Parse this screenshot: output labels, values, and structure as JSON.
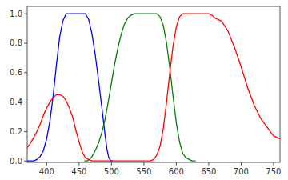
{
  "chart_data": {
    "type": "line",
    "xlim": [
      370,
      760
    ],
    "ylim": [
      -0.01,
      1.05
    ],
    "xticks": [
      400,
      450,
      500,
      550,
      600,
      650,
      700,
      750
    ],
    "yticks": [
      {
        "value": 0.0,
        "label": "0.0"
      },
      0.2,
      0.4,
      0.6,
      0.8,
      {
        "value": 1.0,
        "label": "1.0"
      }
    ],
    "grid": false,
    "series": [
      {
        "color": "blue",
        "x": [
          370,
          375,
          380,
          385,
          390,
          395,
          400,
          405,
          410,
          415,
          420,
          425,
          430,
          435,
          440,
          445,
          450,
          455,
          460,
          465,
          470,
          475,
          480,
          485,
          490,
          493,
          496,
          499,
          502
        ],
        "values": [
          0.0,
          0.0,
          0.0,
          0.01,
          0.03,
          0.07,
          0.15,
          0.27,
          0.44,
          0.65,
          0.84,
          0.95,
          1.0,
          1.0,
          1.0,
          1.0,
          1.0,
          1.0,
          1.0,
          0.96,
          0.86,
          0.72,
          0.55,
          0.37,
          0.18,
          0.08,
          0.02,
          0.0,
          0.0
        ]
      },
      {
        "color": "green",
        "x": [
          458,
          462,
          466,
          470,
          475,
          480,
          485,
          490,
          495,
          500,
          505,
          510,
          515,
          520,
          525,
          530,
          535,
          540,
          545,
          550,
          555,
          560,
          565,
          570,
          575,
          580,
          585,
          590,
          595,
          600,
          605,
          610,
          615,
          620,
          624,
          627,
          630
        ],
        "values": [
          0.0,
          0.0,
          0.01,
          0.03,
          0.07,
          0.12,
          0.19,
          0.28,
          0.4,
          0.53,
          0.66,
          0.77,
          0.86,
          0.93,
          0.97,
          0.99,
          1.0,
          1.0,
          1.0,
          1.0,
          1.0,
          1.0,
          1.0,
          1.0,
          0.98,
          0.92,
          0.8,
          0.63,
          0.44,
          0.26,
          0.13,
          0.05,
          0.02,
          0.01,
          0.0,
          0.0,
          0.0
        ]
      },
      {
        "color": "red",
        "x": [
          370,
          375,
          380,
          385,
          390,
          395,
          400,
          405,
          410,
          415,
          420,
          425,
          430,
          435,
          440,
          445,
          450,
          455,
          460,
          465,
          470,
          475,
          480,
          490,
          500,
          560,
          565,
          570,
          575,
          580,
          585,
          590,
          595,
          600,
          605,
          610,
          615,
          620,
          625,
          630,
          635,
          640,
          645,
          650,
          655,
          660,
          665,
          670,
          680,
          690,
          700,
          710,
          720,
          730,
          740,
          750,
          760
        ],
        "values": [
          0.09,
          0.12,
          0.16,
          0.2,
          0.25,
          0.31,
          0.36,
          0.4,
          0.43,
          0.45,
          0.45,
          0.44,
          0.41,
          0.36,
          0.3,
          0.21,
          0.13,
          0.06,
          0.02,
          0.01,
          0.0,
          0.0,
          0.0,
          0.0,
          0.0,
          0.0,
          0.01,
          0.04,
          0.1,
          0.22,
          0.4,
          0.6,
          0.78,
          0.91,
          0.98,
          1.0,
          1.0,
          1.0,
          1.0,
          1.0,
          1.0,
          1.0,
          1.0,
          1.0,
          0.99,
          0.97,
          0.96,
          0.95,
          0.88,
          0.77,
          0.64,
          0.5,
          0.38,
          0.29,
          0.23,
          0.17,
          0.15
        ]
      }
    ]
  }
}
